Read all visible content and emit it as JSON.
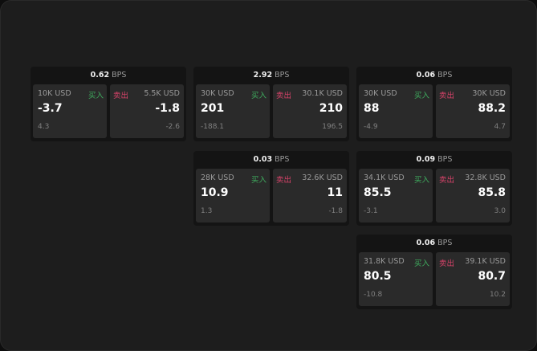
{
  "bps_unit": "BPS",
  "buy_label": "买入",
  "sell_label": "卖出",
  "colors": {
    "buy": "#3fae5f",
    "sell": "#d9436a"
  },
  "cards": [
    {
      "bps": "0.62",
      "buy": {
        "qty": "10K USD",
        "price": "-3.7",
        "change": "4.3"
      },
      "sell": {
        "qty": "5.5K USD",
        "price": "-1.8",
        "change": "-2.6"
      }
    },
    {
      "bps": "2.92",
      "buy": {
        "qty": "30K USD",
        "price": "201",
        "change": "-188.1"
      },
      "sell": {
        "qty": "30.1K USD",
        "price": "210",
        "change": "196.5"
      }
    },
    {
      "bps": "0.06",
      "buy": {
        "qty": "30K USD",
        "price": "88",
        "change": "-4.9"
      },
      "sell": {
        "qty": "30K USD",
        "price": "88.2",
        "change": "4.7"
      }
    },
    {
      "bps": "0.03",
      "buy": {
        "qty": "28K USD",
        "price": "10.9",
        "change": "1.3"
      },
      "sell": {
        "qty": "32.6K USD",
        "price": "11",
        "change": "-1.8"
      }
    },
    {
      "bps": "0.09",
      "buy": {
        "qty": "34.1K USD",
        "price": "85.5",
        "change": "-3.1"
      },
      "sell": {
        "qty": "32.8K USD",
        "price": "85.8",
        "change": "3.0"
      }
    },
    {
      "bps": "0.06",
      "buy": {
        "qty": "31.8K USD",
        "price": "80.5",
        "change": "-10.8"
      },
      "sell": {
        "qty": "39.1K USD",
        "price": "80.7",
        "change": "10.2"
      }
    }
  ]
}
